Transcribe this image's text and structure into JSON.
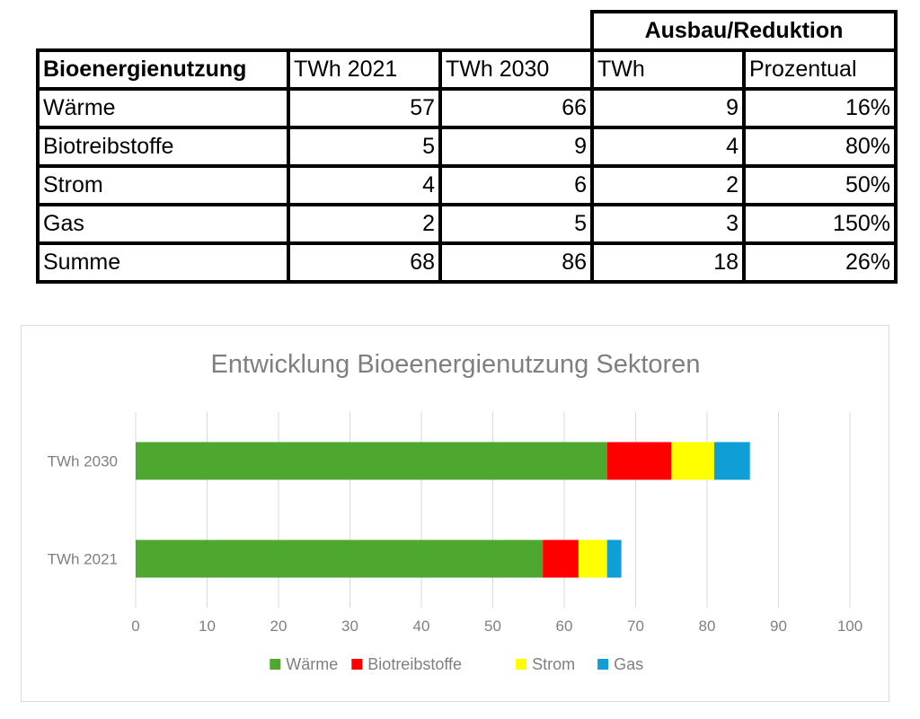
{
  "table": {
    "group_header": "Ausbau/Reduktion",
    "columns": [
      "Bioenergienutzung",
      "TWh 2021",
      "TWh 2030",
      "TWh",
      "Prozentual"
    ],
    "rows": [
      [
        "Wärme",
        "57",
        "66",
        "9",
        "16%"
      ],
      [
        "Biotreibstoffe",
        "5",
        "9",
        "4",
        "80%"
      ],
      [
        "Strom",
        "4",
        "6",
        "2",
        "50%"
      ],
      [
        "Gas",
        "2",
        "5",
        "3",
        "150%"
      ],
      [
        "Summe",
        "68",
        "86",
        "18",
        "26%"
      ]
    ]
  },
  "chart_data": {
    "type": "bar",
    "orientation": "horizontal",
    "stacked": true,
    "title": "Entwicklung Bioeenergienutzung Sektoren",
    "categories": [
      "TWh 2021",
      "TWh 2030"
    ],
    "series": [
      {
        "name": "Wärme",
        "values": [
          57,
          66
        ],
        "color": "#4ea72e"
      },
      {
        "name": "Biotreibstoffe",
        "values": [
          5,
          9
        ],
        "color": "#ff0000"
      },
      {
        "name": "Strom",
        "values": [
          4,
          6
        ],
        "color": "#ffff00"
      },
      {
        "name": "Gas",
        "values": [
          2,
          5
        ],
        "color": "#0f9ed5"
      }
    ],
    "xlim": [
      0,
      100
    ],
    "xticks": [
      "0",
      "10",
      "20",
      "30",
      "40",
      "50",
      "60",
      "70",
      "80",
      "90",
      "100"
    ],
    "grid": true,
    "legend": "bottom"
  }
}
